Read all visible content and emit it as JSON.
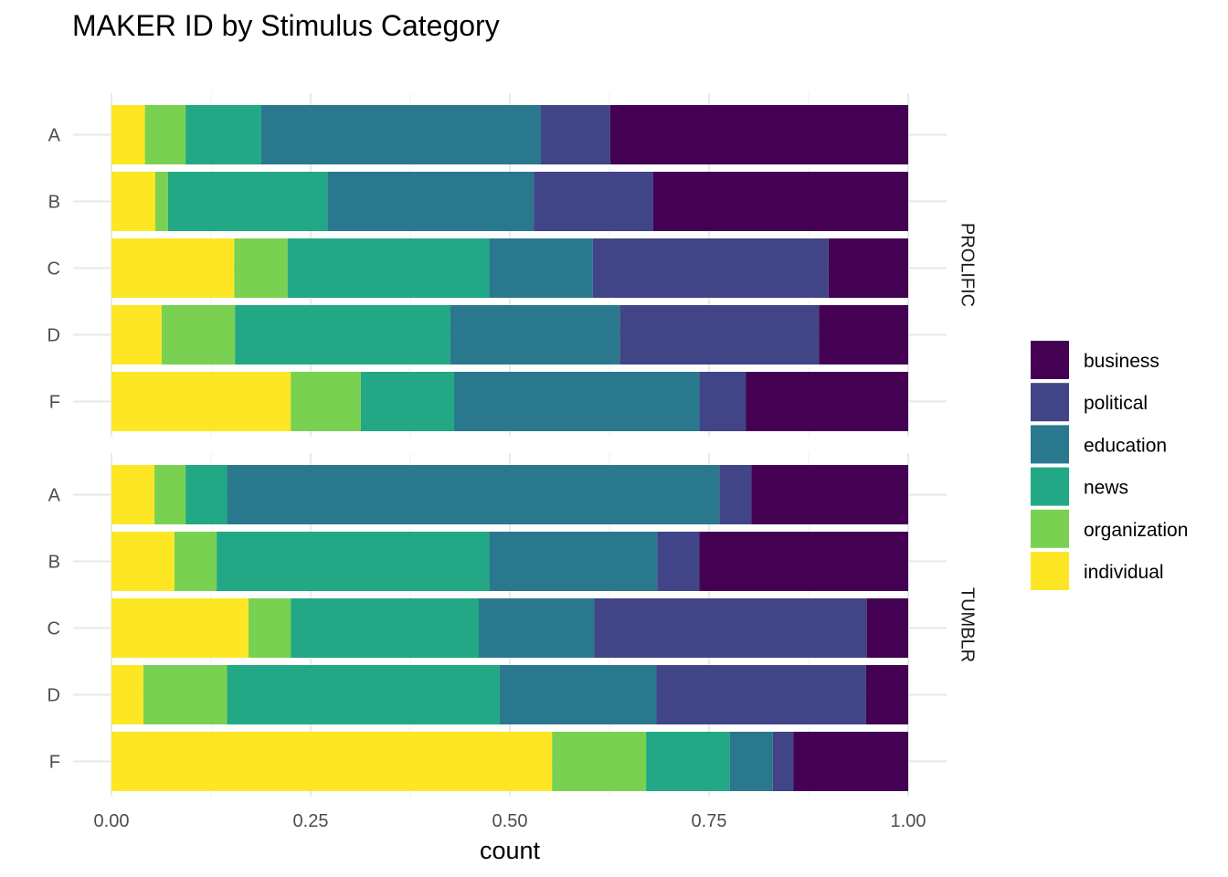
{
  "chart_data": {
    "type": "bar",
    "orientation": "horizontal",
    "stacked": "fill",
    "title": "MAKER ID by Stimulus Category",
    "xlabel": "count",
    "ylabel": "",
    "xlim": [
      0,
      1
    ],
    "x_ticks": [
      "0.00",
      "0.25",
      "0.50",
      "0.75",
      "1.00"
    ],
    "x_tick_values": [
      0,
      0.25,
      0.5,
      0.75,
      1
    ],
    "categories": [
      "A",
      "B",
      "C",
      "D",
      "F"
    ],
    "grid": true,
    "legend_position": "right",
    "stack_order": [
      "individual",
      "organization",
      "news",
      "education",
      "political",
      "business"
    ],
    "legend": [
      {
        "name": "business",
        "color": "#440154"
      },
      {
        "name": "political",
        "color": "#414487"
      },
      {
        "name": "education",
        "color": "#2a788e"
      },
      {
        "name": "news",
        "color": "#22a884"
      },
      {
        "name": "organization",
        "color": "#7ad151"
      },
      {
        "name": "individual",
        "color": "#fde725"
      }
    ],
    "facets": [
      {
        "name": "PROLIFIC",
        "bars": {
          "A": {
            "individual": 0.042,
            "organization": 0.051,
            "news": 0.095,
            "education": 0.351,
            "political": 0.087,
            "business": 0.374
          },
          "B": {
            "individual": 0.055,
            "organization": 0.016,
            "news": 0.2,
            "education": 0.259,
            "political": 0.15,
            "business": 0.32
          },
          "C": {
            "individual": 0.154,
            "organization": 0.067,
            "news": 0.253,
            "education": 0.13,
            "political": 0.296,
            "business": 0.1
          },
          "D": {
            "individual": 0.063,
            "organization": 0.092,
            "news": 0.27,
            "education": 0.213,
            "political": 0.25,
            "business": 0.112
          },
          "F": {
            "individual": 0.225,
            "organization": 0.088,
            "news": 0.117,
            "education": 0.308,
            "political": 0.058,
            "business": 0.204
          }
        }
      },
      {
        "name": "TUMBLR",
        "bars": {
          "A": {
            "individual": 0.054,
            "organization": 0.039,
            "news": 0.052,
            "education": 0.618,
            "political": 0.04,
            "business": 0.197
          },
          "B": {
            "individual": 0.079,
            "organization": 0.053,
            "news": 0.342,
            "education": 0.211,
            "political": 0.053,
            "business": 0.262
          },
          "C": {
            "individual": 0.172,
            "organization": 0.053,
            "news": 0.236,
            "education": 0.145,
            "political": 0.342,
            "business": 0.052
          },
          "D": {
            "individual": 0.04,
            "organization": 0.105,
            "news": 0.342,
            "education": 0.197,
            "political": 0.263,
            "business": 0.053
          },
          "F": {
            "individual": 0.553,
            "organization": 0.118,
            "news": 0.105,
            "education": 0.054,
            "political": 0.026,
            "business": 0.144
          }
        }
      }
    ]
  }
}
